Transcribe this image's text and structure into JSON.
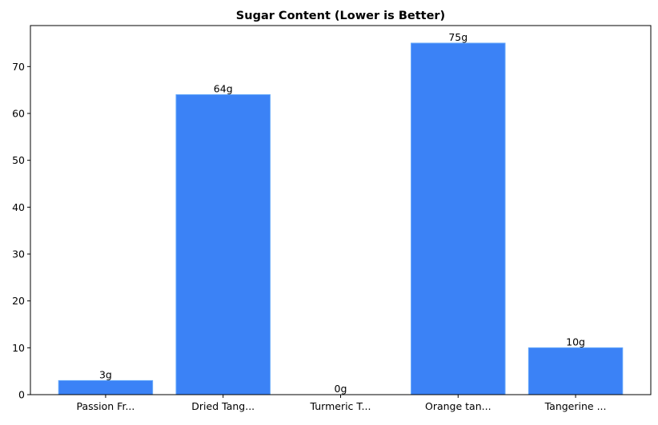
{
  "chart_data": {
    "type": "bar",
    "title": "Sugar Content (Lower is Better)",
    "xlabel": "",
    "ylabel": "",
    "categories": [
      "Passion Fr...",
      "Dried Tang...",
      "Turmeric T...",
      "Orange tan...",
      "Tangerine ..."
    ],
    "values": [
      3,
      64,
      0,
      75,
      10
    ],
    "data_labels": [
      "3g",
      "64g",
      "0g",
      "75g",
      "10g"
    ],
    "ylim": [
      0,
      78.75
    ],
    "yticks": [
      0,
      10,
      20,
      30,
      40,
      50,
      60,
      70
    ],
    "grid": false,
    "bar_color": "#3b82f6",
    "bar_edge_color": "#60a5fa"
  }
}
